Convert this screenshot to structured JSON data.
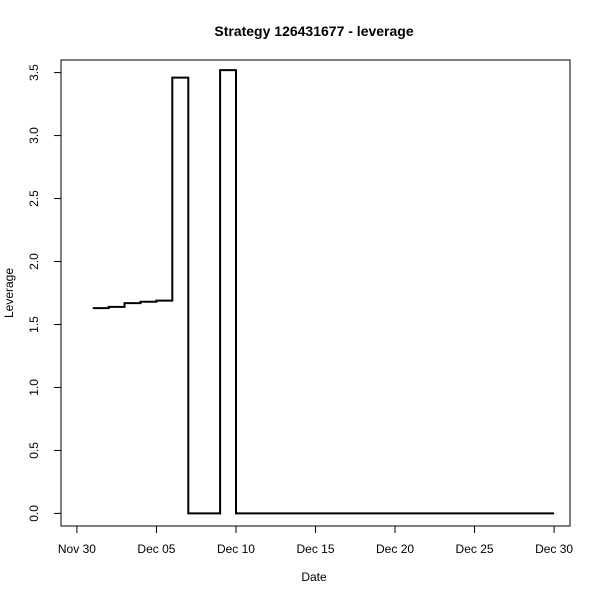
{
  "chart_data": {
    "type": "line",
    "title": "Strategy 126431677 - leverage",
    "xlabel": "Date",
    "ylabel": "Leverage",
    "line_style": "step",
    "color": "#000000",
    "grid": false,
    "legend": "none",
    "xlim": [
      "Nov 29",
      "Dec 31"
    ],
    "ylim": [
      -0.1,
      3.6
    ],
    "x_ticks": [
      {
        "label": "Nov 30",
        "value": "Nov 30"
      },
      {
        "label": "Dec 05",
        "value": "Dec 05"
      },
      {
        "label": "Dec 10",
        "value": "Dec 10"
      },
      {
        "label": "Dec 15",
        "value": "Dec 15"
      },
      {
        "label": "Dec 20",
        "value": "Dec 20"
      },
      {
        "label": "Dec 25",
        "value": "Dec 25"
      },
      {
        "label": "Dec 30",
        "value": "Dec 30"
      }
    ],
    "y_ticks": [
      {
        "label": "0.0",
        "value": 0.0
      },
      {
        "label": "0.5",
        "value": 0.5
      },
      {
        "label": "1.0",
        "value": 1.0
      },
      {
        "label": "1.5",
        "value": 1.5
      },
      {
        "label": "2.0",
        "value": 2.0
      },
      {
        "label": "2.5",
        "value": 2.5
      },
      {
        "label": "3.0",
        "value": 3.0
      },
      {
        "label": "3.5",
        "value": 3.5
      }
    ],
    "series": [
      {
        "points": [
          {
            "x": "Dec 01",
            "y": 1.63
          },
          {
            "x": "Dec 02",
            "y": 1.64
          },
          {
            "x": "Dec 03",
            "y": 1.67
          },
          {
            "x": "Dec 04",
            "y": 1.68
          },
          {
            "x": "Dec 05",
            "y": 1.69
          },
          {
            "x": "Dec 06",
            "y": 3.46
          },
          {
            "x": "Dec 07",
            "y": 0.0
          },
          {
            "x": "Dec 08",
            "y": 0.0
          },
          {
            "x": "Dec 09",
            "y": 3.52
          },
          {
            "x": "Dec 10",
            "y": 0.0
          },
          {
            "x": "Dec 30",
            "y": 0.0
          }
        ]
      }
    ]
  }
}
